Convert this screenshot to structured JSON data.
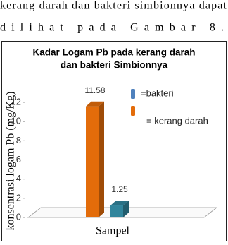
{
  "text_lines": [
    "kerang darah dan bakteri simbionnya dapat",
    "dilihat pada Gambar 8."
  ],
  "chart_data": {
    "type": "bar3d",
    "title": [
      "Kadar Logam Pb pada kerang darah",
      "dan bakteri Simbionnya"
    ],
    "y_label": "konsentrasi logam Pb (mg/Kg)",
    "x_label": "Sampel",
    "categories": [
      null
    ],
    "series": [
      {
        "name": "=bakteri",
        "color": "#31859c",
        "legend_color": "#4f81bd",
        "values": [
          1.25
        ]
      },
      {
        "name": "= kerang darah",
        "color": "#e36c0a",
        "legend_color": "#e36c0a",
        "values": [
          11.58
        ]
      }
    ],
    "ylim": [
      0,
      12
    ],
    "yticks": [
      0,
      2,
      4,
      6,
      8,
      10,
      12
    ],
    "grid": false
  }
}
